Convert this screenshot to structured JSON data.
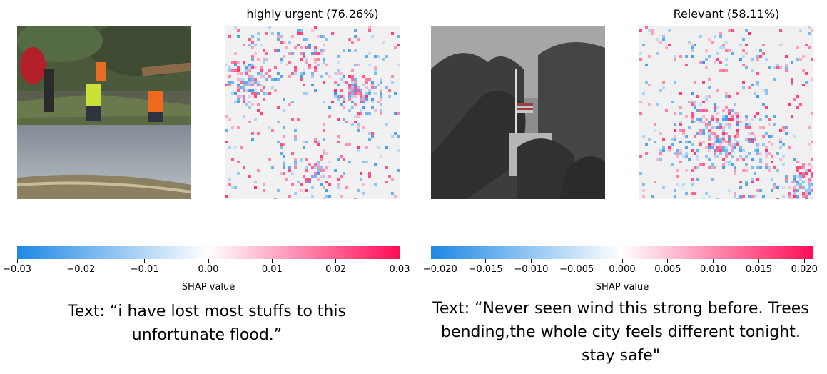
{
  "panels": [
    {
      "title": "highly urgent (76.26%)",
      "caption": "Text: “i have lost most stuffs to this unfortunate flood.”",
      "colorbar": {
        "label": "SHAP value",
        "min": -0.03,
        "max": 0.03,
        "ticks": [
          "−0.03",
          "−0.02",
          "−0.01",
          "0.00",
          "0.01",
          "0.02",
          "0.03"
        ],
        "tick_values": [
          -0.03,
          -0.02,
          -0.01,
          0.0,
          0.01,
          0.02,
          0.03
        ]
      }
    },
    {
      "title": "Relevant (58.11%)",
      "caption": "Text: “Never seen wind this strong before. Trees bending,the whole city feels different tonight. stay safe\"",
      "colorbar": {
        "label": "SHAP value",
        "min": -0.021,
        "max": 0.021,
        "ticks": [
          "−0.020",
          "−0.015",
          "−0.010",
          "−0.005",
          "0.000",
          "0.005",
          "0.010",
          "0.015",
          "0.020"
        ],
        "tick_values": [
          -0.02,
          -0.015,
          -0.01,
          -0.005,
          0.0,
          0.005,
          0.01,
          0.015,
          0.02
        ]
      }
    }
  ],
  "chart_data": {
    "type": "heatmap",
    "colormap": {
      "negative": "#1e88e5",
      "zero": "#ffffff",
      "positive": "#ff0d57"
    }
  }
}
